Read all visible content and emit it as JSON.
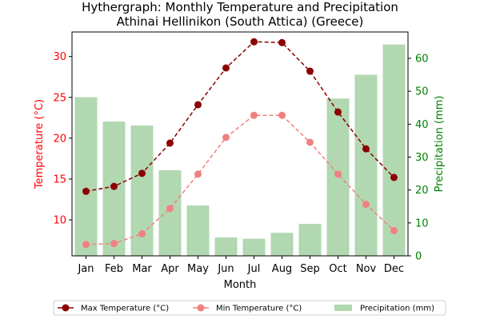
{
  "chart_data": {
    "type": "bar+line",
    "title_line1": "Hythergraph: Monthly Temperature and Precipitation",
    "title_line2": "Athinai Hellinikon (South Attica) (Greece)",
    "xlabel": "Month",
    "ylabel_left": "Temperature (°C)",
    "ylabel_right": "Precipitation (mm)",
    "categories": [
      "Jan",
      "Feb",
      "Mar",
      "Apr",
      "May",
      "Jun",
      "Jul",
      "Aug",
      "Sep",
      "Oct",
      "Nov",
      "Dec"
    ],
    "ylim_left": [
      5.6,
      33.0
    ],
    "yticks_left": [
      10,
      15,
      20,
      25,
      30
    ],
    "ylim_right": [
      0,
      68
    ],
    "yticks_right": [
      0,
      10,
      20,
      30,
      40,
      50,
      60
    ],
    "series": [
      {
        "name": "Max Temperature (°C)",
        "axis": "left",
        "kind": "line",
        "color": "#8b0000",
        "values": [
          13.5,
          14.1,
          15.7,
          19.4,
          24.1,
          28.6,
          31.8,
          31.7,
          28.2,
          23.2,
          18.7,
          15.2
        ]
      },
      {
        "name": "Min Temperature (°C)",
        "axis": "left",
        "kind": "line",
        "color": "#f08080",
        "values": [
          7.0,
          7.1,
          8.3,
          11.4,
          15.6,
          20.1,
          22.8,
          22.8,
          19.5,
          15.6,
          11.9,
          8.7
        ]
      },
      {
        "name": "Precipitation (mm)",
        "axis": "right",
        "kind": "bar",
        "color": "#b2d8b2",
        "values": [
          48.2,
          40.8,
          39.6,
          26.0,
          15.3,
          5.6,
          5.2,
          7.0,
          9.7,
          47.8,
          55.0,
          64.2
        ]
      }
    ],
    "colors": {
      "left_axis": "#ff0000",
      "right_axis": "#008000",
      "axes": "#000000"
    },
    "legend": {
      "placement": "bottom-center",
      "entries": [
        "Max Temperature (°C)",
        "Min Temperature (°C)",
        "Precipitation (mm)"
      ]
    },
    "grid": false
  }
}
